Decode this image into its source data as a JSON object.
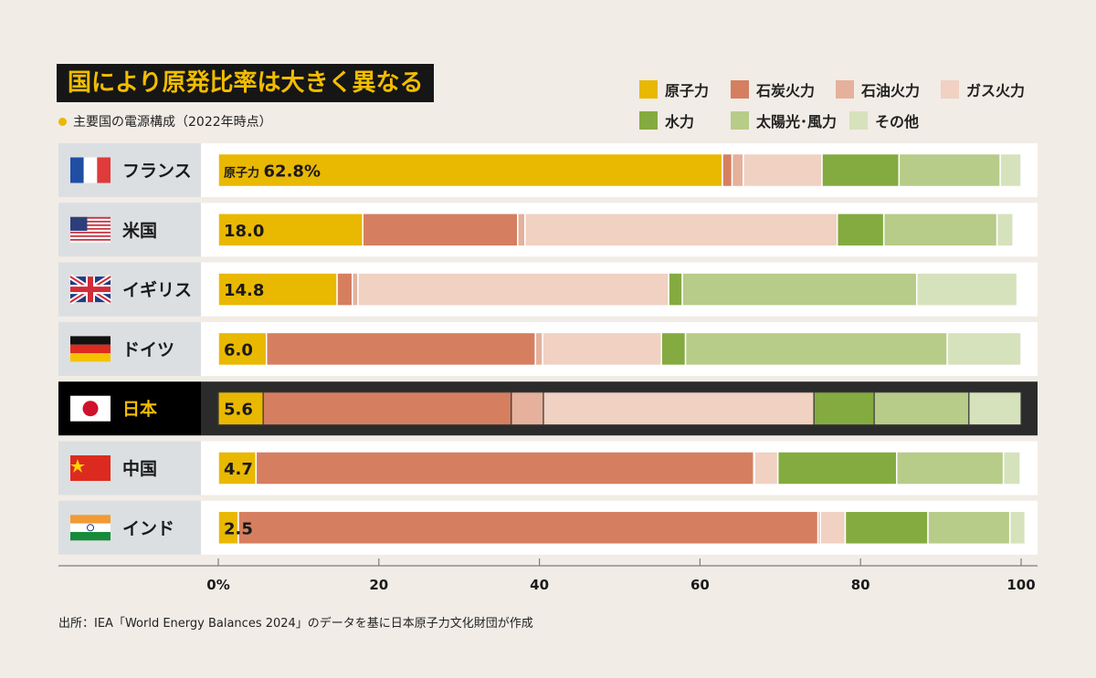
{
  "title": "国により原発比率は大きく異なる",
  "subtitle": "主要国の電源構成（2022年時点）",
  "source": "出所：IEA「World Energy Balances 2024」のデータを基に日本原子力文化財団が作成",
  "colors": {
    "background": "#f1ece6",
    "nuclear": "#e9b800",
    "coal": "#d57f60",
    "oil": "#e5b19c",
    "gas": "#f0d1c2",
    "hydro": "#84ab3f",
    "solar_wind": "#b7cc88",
    "other": "#d6e2bc",
    "highlight_row": "#2b2b2b",
    "label_cell": "#dcdfe2"
  },
  "chart_data": {
    "type": "bar",
    "orientation": "horizontal",
    "stacked": true,
    "categories": [
      "フランス",
      "米国",
      "イギリス",
      "ドイツ",
      "日本",
      "中国",
      "インド"
    ],
    "highlight": "日本",
    "flags": [
      "france-flag-icon",
      "usa-flag-icon",
      "uk-flag-icon",
      "germany-flag-icon",
      "japan-flag-icon",
      "china-flag-icon",
      "india-flag-icon"
    ],
    "series": [
      {
        "name": "原子力",
        "key": "nuclear",
        "values": [
          62.8,
          18.0,
          14.8,
          6.0,
          5.6,
          4.7,
          2.5
        ]
      },
      {
        "name": "石炭火力",
        "key": "coal",
        "values": [
          1.2,
          19.3,
          1.9,
          33.5,
          30.9,
          62.0,
          72.2
        ]
      },
      {
        "name": "石油火力",
        "key": "oil",
        "values": [
          1.4,
          0.9,
          0.7,
          0.9,
          4.0,
          0.1,
          0.3
        ]
      },
      {
        "name": "ガス火力",
        "key": "gas",
        "values": [
          9.8,
          38.9,
          38.7,
          14.8,
          33.7,
          2.9,
          3.1
        ]
      },
      {
        "name": "水力",
        "key": "hydro",
        "values": [
          9.6,
          5.8,
          1.7,
          3.0,
          7.5,
          14.8,
          10.3
        ]
      },
      {
        "name": "太陽光･風力",
        "key": "solar_wind",
        "values": [
          12.6,
          14.1,
          29.2,
          32.6,
          11.8,
          13.3,
          10.2
        ]
      },
      {
        "name": "その他",
        "key": "other",
        "values": [
          2.6,
          2.0,
          12.5,
          9.2,
          6.5,
          2.1,
          1.9
        ]
      }
    ],
    "data_labels": [
      "62.8%",
      "18.0",
      "14.8",
      "6.0",
      "5.6",
      "4.7",
      "2.5"
    ],
    "first_label_prefix": "原子力",
    "x_ticks": [
      "0%",
      "20",
      "40",
      "60",
      "80",
      "100"
    ],
    "xlim": [
      0,
      100
    ]
  }
}
